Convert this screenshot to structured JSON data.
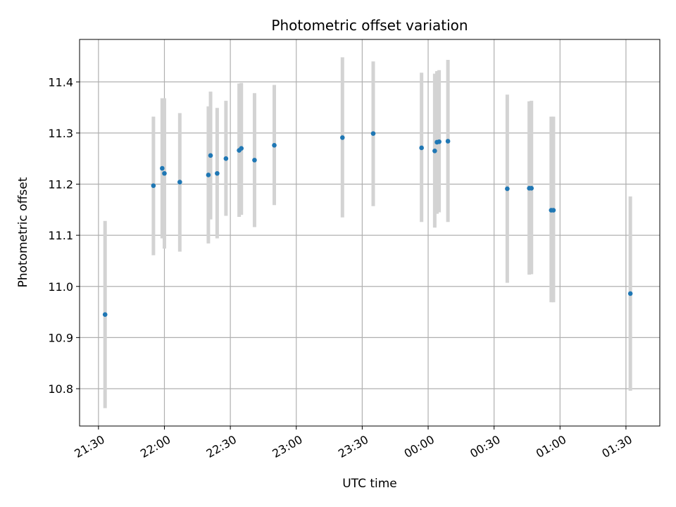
{
  "chart_data": {
    "type": "scatter",
    "title": "Photometric offset variation",
    "xlabel": "UTC time",
    "ylabel": "Photometric offset",
    "x_tick_labels": [
      "21:30",
      "22:00",
      "22:30",
      "23:00",
      "23:30",
      "00:00",
      "00:30",
      "01:00",
      "01:30"
    ],
    "y_ticks": [
      10.8,
      10.9,
      11.0,
      11.1,
      11.2,
      11.3,
      11.4
    ],
    "y_tick_labels": [
      "10.8",
      "10.9",
      "11.0",
      "11.1",
      "11.2",
      "11.3",
      "11.4"
    ],
    "ylim": [
      10.727,
      11.483
    ],
    "xlim_minutes_after_2130": [
      -8.6,
      255.4
    ],
    "grid": true,
    "colors": {
      "point": "#1f77b4",
      "errorbar": "#d3d3d3",
      "grid": "#b0b0b0"
    },
    "points": [
      {
        "time": "21:33",
        "y": 10.945,
        "err_low": 10.762,
        "err_high": 11.128
      },
      {
        "time": "21:55",
        "y": 11.197,
        "err_low": 11.061,
        "err_high": 11.332
      },
      {
        "time": "21:59",
        "y": 11.231,
        "err_low": 11.094,
        "err_high": 11.368
      },
      {
        "time": "22:00",
        "y": 11.221,
        "err_low": 11.074,
        "err_high": 11.368
      },
      {
        "time": "22:07",
        "y": 11.204,
        "err_low": 11.068,
        "err_high": 11.339
      },
      {
        "time": "22:20",
        "y": 11.218,
        "err_low": 11.084,
        "err_high": 11.352
      },
      {
        "time": "22:21",
        "y": 11.256,
        "err_low": 11.131,
        "err_high": 11.381
      },
      {
        "time": "22:24",
        "y": 11.221,
        "err_low": 11.094,
        "err_high": 11.349
      },
      {
        "time": "22:28",
        "y": 11.25,
        "err_low": 11.138,
        "err_high": 11.363
      },
      {
        "time": "22:34",
        "y": 11.266,
        "err_low": 11.136,
        "err_high": 11.397
      },
      {
        "time": "22:35",
        "y": 11.27,
        "err_low": 11.14,
        "err_high": 11.398
      },
      {
        "time": "22:41",
        "y": 11.247,
        "err_low": 11.116,
        "err_high": 11.378
      },
      {
        "time": "22:50",
        "y": 11.276,
        "err_low": 11.159,
        "err_high": 11.394
      },
      {
        "time": "23:21",
        "y": 11.291,
        "err_low": 11.135,
        "err_high": 11.448
      },
      {
        "time": "23:35",
        "y": 11.299,
        "err_low": 11.157,
        "err_high": 11.44
      },
      {
        "time": "23:57",
        "y": 11.271,
        "err_low": 11.126,
        "err_high": 11.418
      },
      {
        "time": "00:03",
        "y": 11.265,
        "err_low": 11.115,
        "err_high": 11.416
      },
      {
        "time": "00:04",
        "y": 11.282,
        "err_low": 11.142,
        "err_high": 11.421
      },
      {
        "time": "00:05",
        "y": 11.283,
        "err_low": 11.145,
        "err_high": 11.423
      },
      {
        "time": "00:09",
        "y": 11.284,
        "err_low": 11.126,
        "err_high": 11.443
      },
      {
        "time": "00:36",
        "y": 11.191,
        "err_low": 11.007,
        "err_high": 11.375
      },
      {
        "time": "00:46",
        "y": 11.192,
        "err_low": 11.023,
        "err_high": 11.362
      },
      {
        "time": "00:47",
        "y": 11.192,
        "err_low": 11.024,
        "err_high": 11.363
      },
      {
        "time": "00:56",
        "y": 11.149,
        "err_low": 10.969,
        "err_high": 11.332
      },
      {
        "time": "00:57",
        "y": 11.149,
        "err_low": 10.969,
        "err_high": 11.332
      },
      {
        "time": "01:32",
        "y": 10.986,
        "err_low": 10.796,
        "err_high": 11.176
      }
    ]
  }
}
